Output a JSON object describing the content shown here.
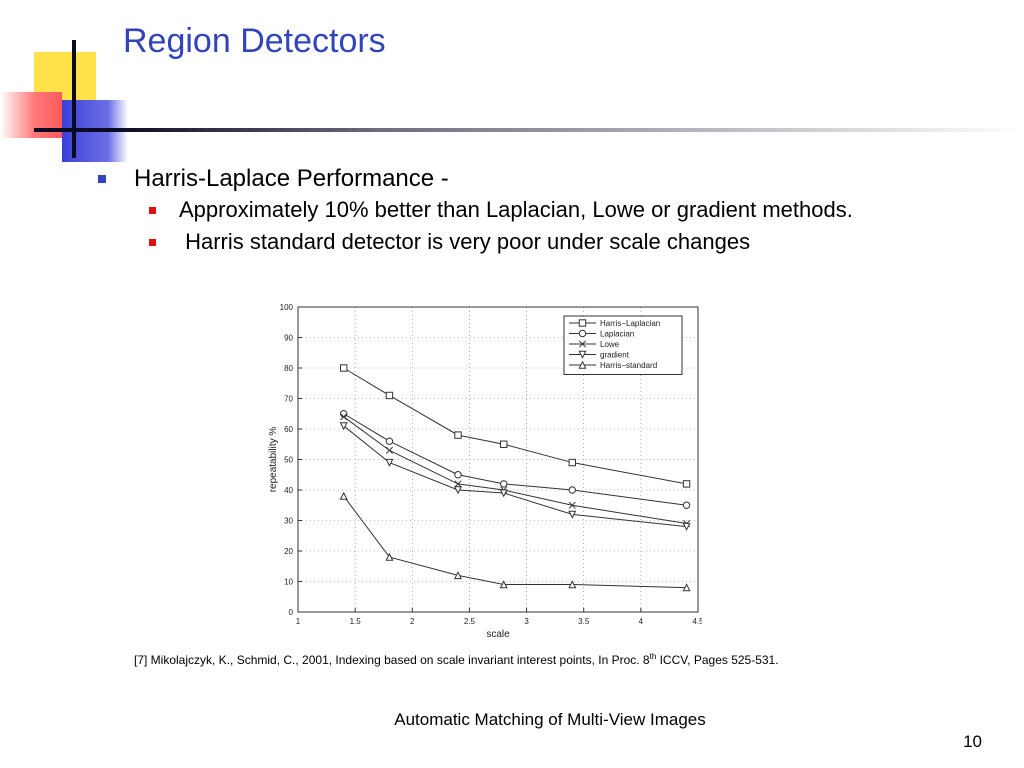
{
  "slide": {
    "title": "Region Detectors",
    "bullets": [
      {
        "text": "Harris-Laplace Performance -",
        "sub": [
          "Approximately 10% better than Laplacian, Lowe or gradient methods.",
          " Harris standard detector is very poor under scale changes"
        ]
      }
    ],
    "citation": {
      "prefix": "[7] Mikolajczyk, K., Schmid, C., 2001, Indexing based on scale invariant interest points, In Proc. 8",
      "sup": "th",
      "suffix": " ICCV, Pages 525-531."
    },
    "footer": "Automatic Matching of Multi-View Images",
    "page_number": "10"
  },
  "colors": {
    "title": "#3344bb",
    "bullet_level1": "#3344bb",
    "bullet_level2": "#dd1111",
    "chart_line": "#333333"
  },
  "chart_data": {
    "type": "line",
    "xlabel": "scale",
    "ylabel": "repeatability %",
    "xlim": [
      1,
      4.5
    ],
    "ylim": [
      0,
      100
    ],
    "xticks": [
      1,
      1.5,
      2,
      2.5,
      3,
      3.5,
      4,
      4.5
    ],
    "xtick_labels": [
      "1",
      "1.5",
      "2",
      "2.5",
      "3",
      "3.5",
      "4",
      "4.5"
    ],
    "yticks": [
      0,
      10,
      20,
      30,
      40,
      50,
      60,
      70,
      80,
      90,
      100
    ],
    "grid": true,
    "legend_position": "top-right",
    "x": [
      1.4,
      1.8,
      2.4,
      2.8,
      3.4,
      4.4
    ],
    "series": [
      {
        "name": "Harris−Laplacian",
        "marker": "square",
        "values": [
          80,
          71,
          58,
          55,
          49,
          42
        ]
      },
      {
        "name": "Laplacian",
        "marker": "circle",
        "values": [
          65,
          56,
          45,
          42,
          40,
          35
        ]
      },
      {
        "name": "Lowe",
        "marker": "x",
        "values": [
          64,
          53,
          42,
          40,
          35,
          29
        ]
      },
      {
        "name": "gradient",
        "marker": "triangle-down",
        "values": [
          61,
          49,
          40,
          39,
          32,
          28
        ]
      },
      {
        "name": "Harris−standard",
        "marker": "triangle-up",
        "values": [
          38,
          18,
          12,
          9,
          9,
          8
        ]
      }
    ]
  }
}
